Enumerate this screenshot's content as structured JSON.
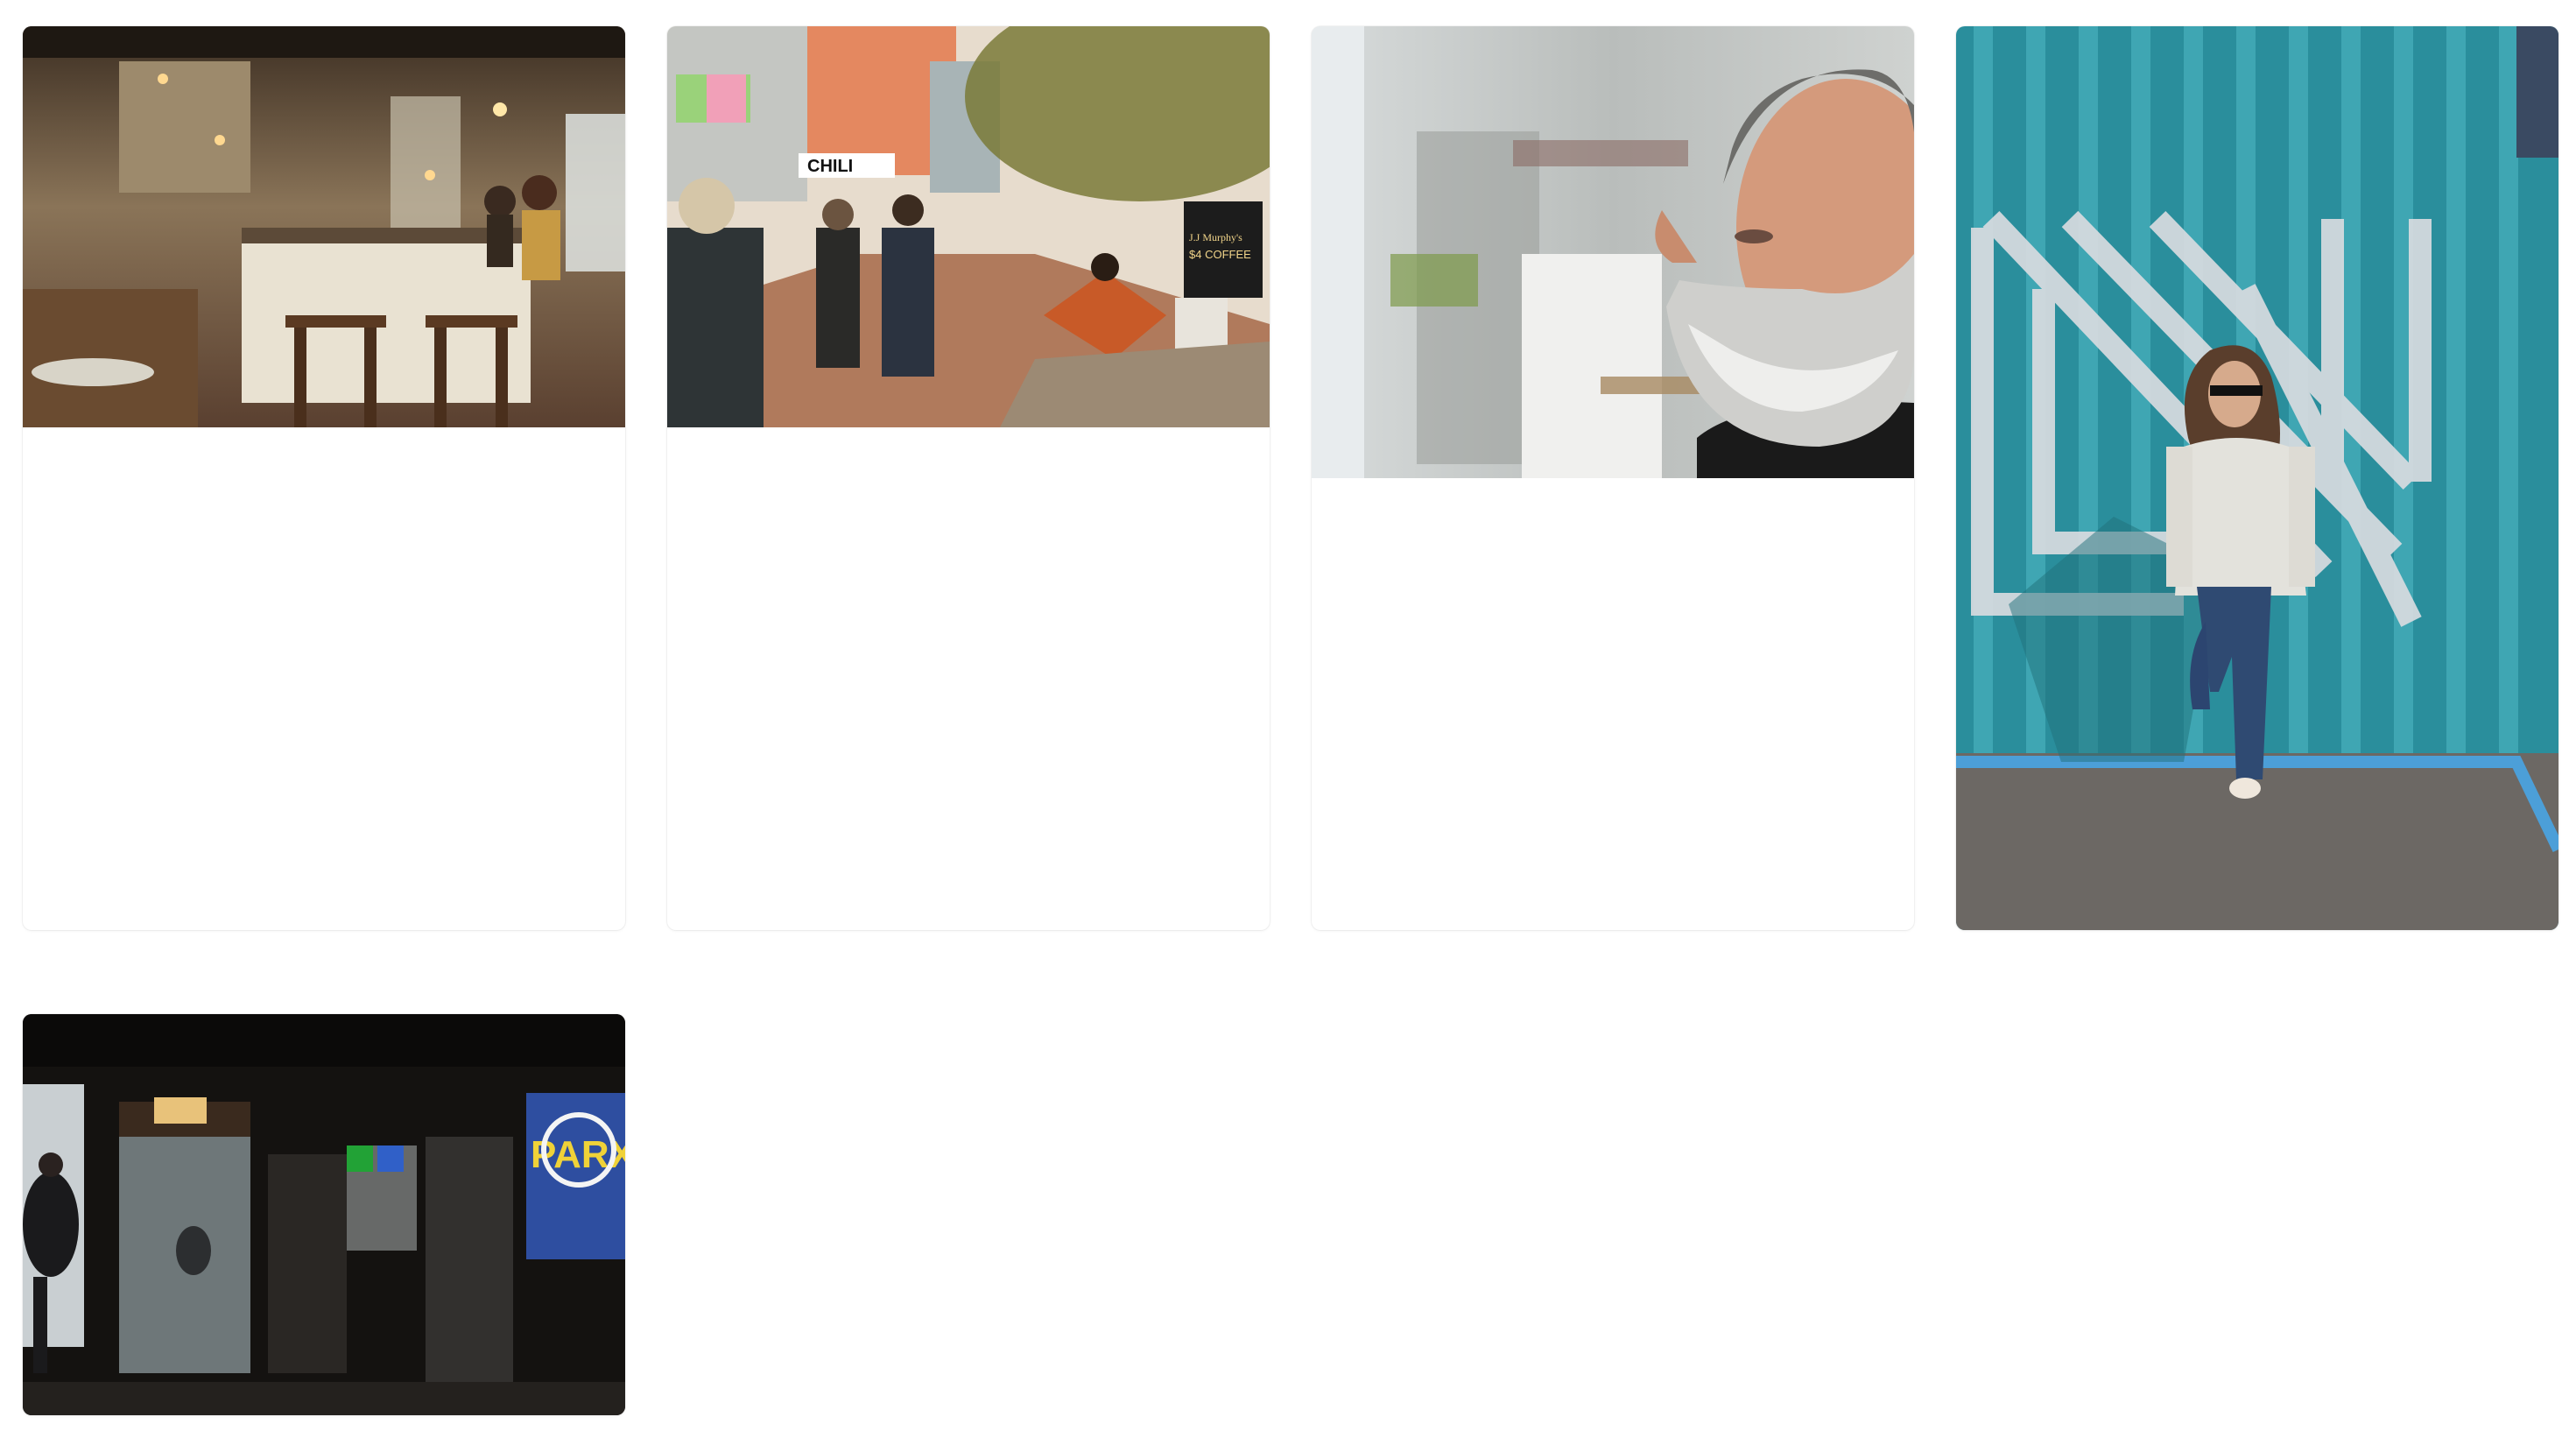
{
  "gallery": {
    "photos": [
      {
        "subject": "cafe-interior",
        "sign_text": ""
      },
      {
        "subject": "street-scene",
        "sign_text": "CHILI",
        "sign_text_2": "$4 COFFEE",
        "sign_text_3": "J.J Murphy's"
      },
      {
        "subject": "bearded-man-portrait",
        "sign_text": ""
      },
      {
        "subject": "woman-against-teal-wall",
        "sign_text": ""
      },
      {
        "subject": "dark-storefront",
        "sign_text": "PARX"
      }
    ]
  },
  "colors": {
    "page_background": "#ffffff",
    "teal_wall": "#2a8e9c",
    "cafe_warm": "#8a6a44",
    "street_brick": "#b07a5c"
  }
}
